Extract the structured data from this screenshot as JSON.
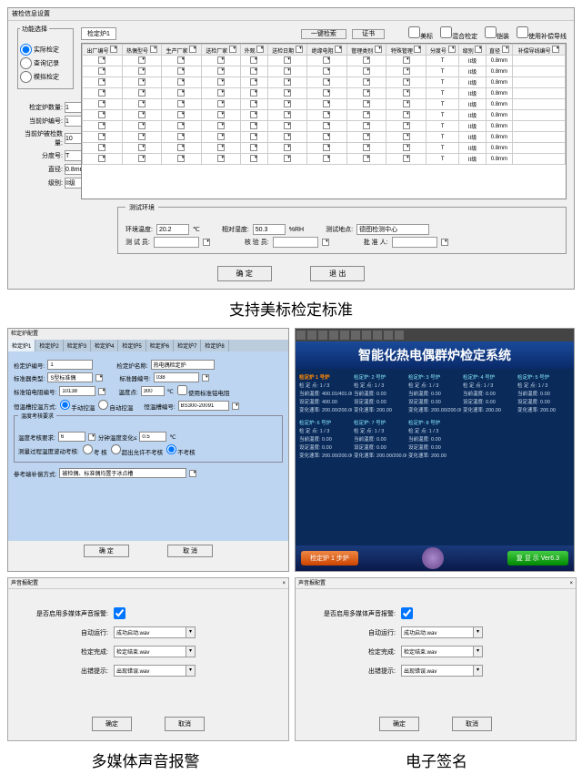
{
  "top": {
    "title": "被检信息设置",
    "func_sel": {
      "legend": "功能选择",
      "opts": [
        "实际检定",
        "查询记录",
        "模拟检定"
      ]
    },
    "left_params": [
      {
        "label": "检定炉数量:",
        "value": "1"
      },
      {
        "label": "当前炉编号:",
        "value": "1"
      },
      {
        "label": "当前炉被检数量:",
        "value": "10"
      },
      {
        "label": "分度号:",
        "value": "T"
      },
      {
        "label": "直径:",
        "value": "0.8mm"
      },
      {
        "label": "级别:",
        "value": "II级"
      }
    ],
    "tab": "检定炉1",
    "toolbar": {
      "btn1": "一键检索",
      "btn2": "证书"
    },
    "checks": [
      "美标",
      "混合检定",
      "铠装",
      "使用补偿导线"
    ],
    "columns": [
      "出厂编号",
      "热偶型号",
      "生产厂家",
      "送检厂家",
      "外观",
      "送检日期",
      "绝缘电阻",
      "管理类别",
      "特殊管理",
      "分度号",
      "级别",
      "直径",
      "补偿导线编号"
    ],
    "row_defaults": {
      "fendu": "T",
      "jibie": "II级",
      "zhijing": "0.8mm"
    },
    "rows": 10,
    "env": {
      "legend": "测试环境",
      "temp_lbl": "环境温度:",
      "temp": "20.2",
      "temp_unit": "℃",
      "hum_lbl": "相对湿度:",
      "hum": "50.3",
      "hum_unit": "%RH",
      "loc_lbl": "测试地点:",
      "loc": "德图检测中心",
      "tester_lbl": "测 试 员:",
      "verifier_lbl": "核 验 员:",
      "approver_lbl": "批 准 人:"
    },
    "ok": "确 定",
    "cancel": "退 出"
  },
  "caption1": "支持美标检定标准",
  "caption2": "多媒体声音报警",
  "caption3": "电子签名",
  "ml": {
    "title": "检定炉配置",
    "tabs": [
      "检定炉1",
      "检定炉2",
      "检定炉3",
      "检定炉4",
      "检定炉5",
      "检定炉6",
      "检定炉7",
      "检定炉8"
    ],
    "r1": {
      "a": "检定炉编号:",
      "av": "1",
      "b": "检定炉名称:",
      "bv": "热电偶检定炉"
    },
    "r2": {
      "a": "标准器类型:",
      "av": "S型标准偶",
      "b": "标准器编号:",
      "bv": "038"
    },
    "r3": {
      "a": "标准铂电阻编号:",
      "av": "10138",
      "b": "温度点:",
      "bv": "300",
      "bu": "℃",
      "c": "使用标准铂电阻"
    },
    "r4": {
      "a": "恒温槽控温方式:",
      "o1": "手动控温",
      "o2": "自动控温",
      "b": "恒温槽编号:",
      "bv": "BS300-20091"
    },
    "fset": {
      "lg": "温度考核要求",
      "r1a": "温度考核要求:",
      "r1av": "6",
      "r1b": "分钟温度变化≤",
      "r1bv": "0.5",
      "r1u": "℃",
      "r2a": "测量过程温度波动考核:",
      "o1": "考 核",
      "o2": "超出允许不考核",
      "o3": "不考核"
    },
    "r5": {
      "a": "参考端补偿方式:",
      "av": "被检偶、标准偶均置于冰点槽"
    },
    "ok": "确 定",
    "cancel": "取 消"
  },
  "mr": {
    "banner": "智能化热电偶群炉检定系统",
    "group1_title": "检定炉 1 号炉",
    "blocks": [
      {
        "t": "检定炉: 2 号炉",
        "a": "检 定 点: 1 / 3",
        "b": "当前温度:  0.00",
        "c": "设定温度:  0.00",
        "d": "变化速率: 200.00"
      },
      {
        "t": "检定炉: 3 号炉",
        "a": "检 定 点: 1 / 3",
        "b": "当前温度:  0.00",
        "c": "设定温度:  0.00",
        "d": "变化速率: 200.00/200.00"
      },
      {
        "t": "检定炉: 4 号炉",
        "a": "检 定 点: 1 / 3",
        "b": "当前温度:  0.00",
        "c": "设定温度:  0.00",
        "d": "变化速率: 200.00"
      },
      {
        "t": "检定炉: 5 号炉",
        "a": "检 定 点: 1 / 3",
        "b": "当前温度:  0.00",
        "c": "设定温度:  0.00",
        "d": "变化速率: 200.00"
      }
    ],
    "row1": {
      "a": "检 定 点: 1 / 3",
      "b": "当前温度: 400.01/401.00",
      "c": "设定温度: 400.00",
      "d": "变化速率:  200.00/200.00"
    },
    "blocks2": [
      {
        "t": "检定炉: 6 号炉",
        "a": "检 定 点: 1 / 3",
        "b": "当前温度:  0.00",
        "c": "设定温度:  0.00",
        "d": "变化速率: 200.00/200.00"
      },
      {
        "t": "检定炉: 7 号炉",
        "a": "检 定 点: 1 / 3",
        "b": "当前温度:  0.00",
        "c": "设定温度:  0.00",
        "d": "变化速率: 200.00/200.00"
      },
      {
        "t": "检定炉: 8 号炉",
        "a": "检 定 点: 1 / 3",
        "b": "当前温度:  0.00",
        "c": "设定温度:  0.00",
        "d": "变化速率: 200.00"
      }
    ],
    "fbtn1": "检定炉 1 步炉",
    "fbtn2": "复 显 示  Ver6.3"
  },
  "audio": {
    "title": "声音报配置",
    "enable": "是否启用多媒体声音报警:",
    "rows": [
      {
        "l": "自动运行:",
        "v": "成功启动.wav"
      },
      {
        "l": "检定完成:",
        "v": "检定结束.wav"
      },
      {
        "l": "出错提示:",
        "v": "出现错误.wav"
      }
    ],
    "ok": "确定",
    "cancel": "取消"
  }
}
